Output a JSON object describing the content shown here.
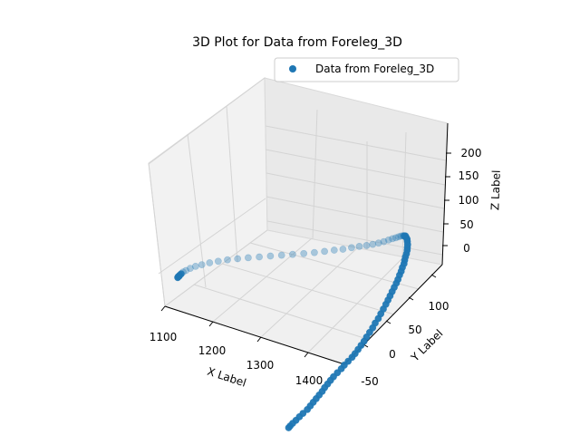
{
  "chart_data": {
    "type": "scatter",
    "projection": "3d",
    "title": "3D Plot for Data from Foreleg_3D",
    "xlabel": "X Label",
    "ylabel": "Y Label",
    "zlabel": "Z Label",
    "xticks": [
      "1100",
      "1200",
      "1300",
      "1400"
    ],
    "yticks": [
      "-50",
      "0",
      "50",
      "100"
    ],
    "zticks": [
      "0",
      "50",
      "100",
      "150",
      "200"
    ],
    "legend": {
      "placement": "top-right",
      "label": "Data from Foreleg_3D"
    },
    "colors": {
      "series": "#1f77b4",
      "pane": "#f2f2f2",
      "grid": "#d4d4d4"
    },
    "grid": true,
    "series": [
      {
        "name": "Data from Foreleg_3D",
        "x": [
          1392,
          1393,
          1395,
          1398,
          1401,
          1404,
          1408,
          1410,
          1412,
          1414,
          1416,
          1418,
          1419,
          1421,
          1423,
          1425,
          1428,
          1431,
          1433,
          1436,
          1439,
          1441,
          1443,
          1445,
          1447,
          1448,
          1450,
          1452,
          1453,
          1455,
          1456,
          1457,
          1458,
          1459,
          1460,
          1461,
          1462,
          1463,
          1464,
          1464,
          1465,
          1465,
          1466,
          1466,
          1466,
          1467,
          1467,
          1467,
          1467,
          1466,
          1466,
          1465,
          1464,
          1463,
          1462,
          1460,
          1458,
          1455,
          1451,
          1446,
          1440,
          1433,
          1425,
          1416,
          1405,
          1393,
          1380,
          1366,
          1351,
          1335,
          1318,
          1300,
          1282,
          1264,
          1246,
          1228,
          1211,
          1195,
          1181,
          1168,
          1157,
          1148,
          1141,
          1136,
          1133,
          1132,
          1131,
          1131,
          1130,
          1130
        ],
        "y": [
          -30,
          -28,
          -25,
          -21,
          -17,
          -13,
          -8,
          -4,
          0,
          4,
          8,
          12,
          16,
          20,
          24,
          28,
          33,
          38,
          42,
          47,
          52,
          56,
          60,
          64,
          68,
          72,
          76,
          80,
          84,
          88,
          92,
          96,
          100,
          103,
          106,
          109,
          112,
          115,
          117,
          120,
          122,
          124,
          126,
          127,
          128,
          129,
          130,
          130,
          130,
          130,
          129,
          128,
          127,
          125,
          123,
          121,
          118,
          115,
          112,
          109,
          105,
          101,
          97,
          93,
          89,
          85,
          80,
          76,
          71,
          66,
          61,
          56,
          51,
          46,
          41,
          36,
          31,
          26,
          21,
          16,
          11,
          7,
          3,
          -1,
          -4,
          -7,
          -9,
          -10,
          -11,
          -12
        ],
        "z": [
          -60,
          -58,
          -55,
          -52,
          -48,
          -44,
          -40,
          -36,
          -32,
          -28,
          -24,
          -20,
          -16,
          -12,
          -8,
          -4,
          0,
          4,
          8,
          12,
          16,
          20,
          25,
          30,
          35,
          40,
          46,
          52,
          58,
          64,
          70,
          76,
          82,
          88,
          94,
          100,
          106,
          112,
          118,
          124,
          130,
          136,
          142,
          148,
          154,
          160,
          166,
          172,
          178,
          184,
          190,
          194,
          198,
          200,
          202,
          203,
          204,
          204,
          204,
          203,
          202,
          201,
          200,
          199,
          198,
          196,
          194,
          192,
          190,
          188,
          186,
          184,
          182,
          180,
          178,
          176,
          174,
          172,
          170,
          168,
          166,
          164,
          162,
          160,
          159,
          158,
          157,
          156,
          156,
          155
        ]
      }
    ],
    "xlim": [
      1080,
      1460
    ],
    "ylim": [
      -60,
      130
    ],
    "zlim": [
      -60,
      240
    ]
  }
}
